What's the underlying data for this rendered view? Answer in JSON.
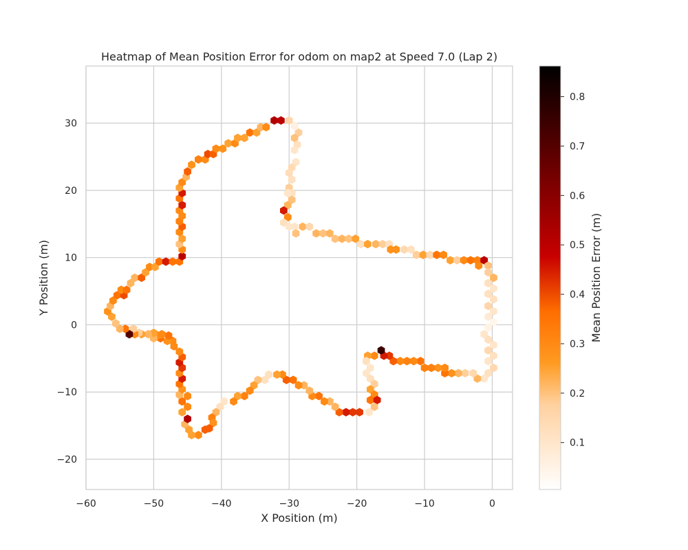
{
  "chart_data": {
    "type": "hexbin",
    "title": "Heatmap of Mean Position Error for odom on map2 at Speed 7.0 (Lap 2)",
    "xlabel": "X Position (m)",
    "ylabel": "Y Position (m)",
    "xlim": [
      -60,
      3
    ],
    "ylim": [
      -24.5,
      38.5
    ],
    "xticks": [
      -60,
      -50,
      -40,
      -30,
      -20,
      -10,
      0
    ],
    "yticks": [
      -20,
      -10,
      0,
      10,
      20,
      30
    ],
    "xtick_labels": [
      "−60",
      "−50",
      "−40",
      "−30",
      "−20",
      "−10",
      "0"
    ],
    "ytick_labels": [
      "−20",
      "−10",
      "0",
      "10",
      "20",
      "30"
    ],
    "grid": true,
    "colormap": "gist_heat_r",
    "colorbar": {
      "label": "Mean Position Error (m)",
      "range": [
        0.005,
        0.862
      ],
      "ticks": [
        0.1,
        0.2,
        0.3,
        0.4,
        0.5,
        0.6,
        0.7,
        0.8
      ],
      "tick_labels": [
        "0.1",
        "0.2",
        "0.3",
        "0.4",
        "0.5",
        "0.6",
        "0.7",
        "0.8"
      ]
    },
    "points": [
      [
        -32.2,
        30.4,
        0.52
      ],
      [
        -31.2,
        30.4,
        0.5
      ],
      [
        -30.0,
        30.4,
        0.16
      ],
      [
        -29.2,
        29.6,
        0.06
      ],
      [
        -28.6,
        28.6,
        0.18
      ],
      [
        -29.2,
        27.8,
        0.2
      ],
      [
        -28.8,
        26.8,
        0.12
      ],
      [
        -29.2,
        26.0,
        0.1
      ],
      [
        -29.0,
        24.2,
        0.1
      ],
      [
        -29.6,
        23.4,
        0.14
      ],
      [
        -30.0,
        22.6,
        0.13
      ],
      [
        -29.6,
        21.6,
        0.12
      ],
      [
        -30.0,
        20.4,
        0.18
      ],
      [
        -29.6,
        19.6,
        0.12
      ],
      [
        -30.2,
        19.6,
        0.1
      ],
      [
        -29.6,
        18.6,
        0.2
      ],
      [
        -30.2,
        17.8,
        0.22
      ],
      [
        -30.8,
        17.0,
        0.45
      ],
      [
        -30.2,
        16.0,
        0.3
      ],
      [
        -30.8,
        15.2,
        0.12
      ],
      [
        -30.0,
        14.6,
        0.1
      ],
      [
        -29.2,
        14.6,
        0.1
      ],
      [
        -29.0,
        13.6,
        0.2
      ],
      [
        -28.0,
        14.6,
        0.22
      ],
      [
        -27.0,
        14.6,
        0.15
      ],
      [
        -26.0,
        13.6,
        0.22
      ],
      [
        -25.0,
        13.6,
        0.2
      ],
      [
        -24.0,
        13.6,
        0.22
      ],
      [
        -23.2,
        12.8,
        0.2
      ],
      [
        -22.2,
        12.8,
        0.22
      ],
      [
        -21.2,
        12.8,
        0.2
      ],
      [
        -20.2,
        12.8,
        0.25
      ],
      [
        -19.4,
        12.0,
        0.12
      ],
      [
        -18.4,
        12.0,
        0.25
      ],
      [
        -17.2,
        12.0,
        0.22
      ],
      [
        -16.2,
        12.0,
        0.18
      ],
      [
        -15.2,
        12.0,
        0.12
      ],
      [
        -15.0,
        11.2,
        0.28
      ],
      [
        -14.2,
        11.2,
        0.28
      ],
      [
        -13.0,
        11.2,
        0.15
      ],
      [
        -12.0,
        11.2,
        0.12
      ],
      [
        -11.2,
        10.4,
        0.18
      ],
      [
        -10.2,
        10.4,
        0.25
      ],
      [
        -9.2,
        10.4,
        0.15
      ],
      [
        -8.2,
        10.4,
        0.35
      ],
      [
        -7.2,
        10.4,
        0.3
      ],
      [
        -6.2,
        9.6,
        0.25
      ],
      [
        -5.2,
        9.6,
        0.18
      ],
      [
        -4.2,
        9.6,
        0.3
      ],
      [
        -3.2,
        9.6,
        0.35
      ],
      [
        -2.2,
        9.6,
        0.32
      ],
      [
        -1.2,
        9.6,
        0.5
      ],
      [
        -2.0,
        8.8,
        0.3
      ],
      [
        -0.6,
        8.8,
        0.2
      ],
      [
        -0.6,
        7.8,
        0.18
      ],
      [
        0.2,
        7.0,
        0.22
      ],
      [
        -0.6,
        6.2,
        0.12
      ],
      [
        0.2,
        5.4,
        0.1
      ],
      [
        -0.6,
        4.6,
        0.12
      ],
      [
        0.2,
        3.8,
        0.12
      ],
      [
        -0.6,
        2.8,
        0.16
      ],
      [
        0.2,
        2.0,
        0.1
      ],
      [
        -0.6,
        1.2,
        0.08
      ],
      [
        0.2,
        0.4,
        0.04
      ],
      [
        -0.6,
        -0.4,
        0.05
      ],
      [
        -1.2,
        -1.4,
        0.1
      ],
      [
        -0.6,
        -2.2,
        0.12
      ],
      [
        0.2,
        -3.0,
        0.1
      ],
      [
        -0.6,
        -3.8,
        0.15
      ],
      [
        0.2,
        -4.6,
        0.12
      ],
      [
        -0.6,
        -5.4,
        0.1
      ],
      [
        0.2,
        -6.4,
        0.15
      ],
      [
        -0.6,
        -7.2,
        0.12
      ],
      [
        -1.2,
        -8.0,
        0.1
      ],
      [
        -2.2,
        -8.0,
        0.22
      ],
      [
        -2.8,
        -7.2,
        0.15
      ],
      [
        -4.0,
        -7.2,
        0.18
      ],
      [
        -5.0,
        -7.2,
        0.22
      ],
      [
        -6.0,
        -7.2,
        0.28
      ],
      [
        -7.0,
        -7.2,
        0.35
      ],
      [
        -7.0,
        -6.4,
        0.3
      ],
      [
        -8.0,
        -6.4,
        0.28
      ],
      [
        -9.0,
        -6.4,
        0.32
      ],
      [
        -10.0,
        -6.4,
        0.32
      ],
      [
        -10.6,
        -5.4,
        0.35
      ],
      [
        -11.6,
        -5.4,
        0.3
      ],
      [
        -12.6,
        -5.4,
        0.32
      ],
      [
        -13.6,
        -5.4,
        0.3
      ],
      [
        -14.6,
        -5.4,
        0.38
      ],
      [
        -15.2,
        -4.6,
        0.42
      ],
      [
        -16.0,
        -4.6,
        0.45
      ],
      [
        -16.4,
        -3.8,
        0.75
      ],
      [
        -17.4,
        -4.6,
        0.3
      ],
      [
        -18.4,
        -4.6,
        0.25
      ],
      [
        -18.6,
        -5.4,
        0.12
      ],
      [
        -18.0,
        -6.4,
        0.1
      ],
      [
        -18.6,
        -7.2,
        0.1
      ],
      [
        -18.0,
        -8.0,
        0.12
      ],
      [
        -17.4,
        -8.8,
        0.18
      ],
      [
        -18.0,
        -9.6,
        0.25
      ],
      [
        -17.4,
        -10.4,
        0.3
      ],
      [
        -18.0,
        -11.2,
        0.35
      ],
      [
        -17.0,
        -11.2,
        0.45
      ],
      [
        -17.4,
        -12.2,
        0.2
      ],
      [
        -18.2,
        -13.0,
        0.1
      ],
      [
        -19.6,
        -13.0,
        0.42
      ],
      [
        -20.6,
        -13.0,
        0.42
      ],
      [
        -21.6,
        -13.0,
        0.45
      ],
      [
        -22.6,
        -13.0,
        0.38
      ],
      [
        -23.2,
        -12.2,
        0.22
      ],
      [
        -24.0,
        -11.4,
        0.22
      ],
      [
        -24.8,
        -11.4,
        0.3
      ],
      [
        -25.6,
        -10.6,
        0.35
      ],
      [
        -26.6,
        -10.6,
        0.3
      ],
      [
        -27.0,
        -9.8,
        0.22
      ],
      [
        -27.8,
        -9.0,
        0.22
      ],
      [
        -28.6,
        -9.0,
        0.3
      ],
      [
        -29.4,
        -8.2,
        0.35
      ],
      [
        -30.4,
        -8.2,
        0.38
      ],
      [
        -31.0,
        -7.4,
        0.3
      ],
      [
        -31.8,
        -7.4,
        0.25
      ],
      [
        -33.0,
        -7.4,
        0.12
      ],
      [
        -33.6,
        -8.2,
        0.12
      ],
      [
        -34.6,
        -8.2,
        0.2
      ],
      [
        -35.2,
        -9.0,
        0.25
      ],
      [
        -35.8,
        -9.8,
        0.3
      ],
      [
        -36.6,
        -10.6,
        0.32
      ],
      [
        -37.6,
        -10.6,
        0.25
      ],
      [
        -38.2,
        -11.4,
        0.3
      ],
      [
        -39.6,
        -11.4,
        0.1
      ],
      [
        -40.2,
        -12.2,
        0.12
      ],
      [
        -40.8,
        -13.0,
        0.22
      ],
      [
        -41.4,
        -13.8,
        0.32
      ],
      [
        -41.2,
        -14.6,
        0.28
      ],
      [
        -41.8,
        -15.4,
        0.38
      ],
      [
        -42.4,
        -15.6,
        0.38
      ],
      [
        -43.4,
        -16.4,
        0.3
      ],
      [
        -44.4,
        -16.4,
        0.25
      ],
      [
        -44.8,
        -15.6,
        0.25
      ],
      [
        -45.4,
        -14.8,
        0.22
      ],
      [
        -45.0,
        -14.0,
        0.52
      ],
      [
        -45.8,
        -13.0,
        0.25
      ],
      [
        -45.0,
        -12.2,
        0.3
      ],
      [
        -45.8,
        -11.4,
        0.35
      ],
      [
        -45.0,
        -10.6,
        0.3
      ],
      [
        -46.2,
        -10.4,
        0.22
      ],
      [
        -45.8,
        -9.6,
        0.28
      ],
      [
        -46.2,
        -8.8,
        0.35
      ],
      [
        -45.8,
        -8.0,
        0.45
      ],
      [
        -46.2,
        -7.2,
        0.3
      ],
      [
        -45.8,
        -6.4,
        0.42
      ],
      [
        -46.2,
        -5.6,
        0.45
      ],
      [
        -45.8,
        -4.8,
        0.38
      ],
      [
        -46.2,
        -4.0,
        0.3
      ],
      [
        -47.0,
        -3.2,
        0.3
      ],
      [
        -47.2,
        -2.4,
        0.3
      ],
      [
        -48.0,
        -2.4,
        0.28
      ],
      [
        -47.8,
        -1.6,
        0.35
      ],
      [
        -49.0,
        -2.0,
        0.35
      ],
      [
        -48.8,
        -1.4,
        0.3
      ],
      [
        -49.4,
        -1.6,
        0.3
      ],
      [
        -50.0,
        -2.0,
        0.22
      ],
      [
        -50.0,
        -1.2,
        0.25
      ],
      [
        -50.8,
        -1.4,
        0.22
      ],
      [
        -51.8,
        -1.4,
        0.25
      ],
      [
        -52.2,
        -1.2,
        0.18
      ],
      [
        -52.8,
        -1.4,
        0.3
      ],
      [
        -53.0,
        -0.6,
        0.18
      ],
      [
        -53.6,
        -1.4,
        0.7
      ],
      [
        -54.2,
        -0.6,
        0.35
      ],
      [
        -55.0,
        -0.6,
        0.22
      ],
      [
        -55.6,
        0.2,
        0.2
      ],
      [
        -56.2,
        1.2,
        0.25
      ],
      [
        -56.8,
        2.0,
        0.28
      ],
      [
        -56.4,
        2.8,
        0.22
      ],
      [
        -56.0,
        3.6,
        0.3
      ],
      [
        -55.4,
        4.4,
        0.35
      ],
      [
        -54.4,
        4.4,
        0.4
      ],
      [
        -54.8,
        5.2,
        0.3
      ],
      [
        -54.0,
        5.2,
        0.35
      ],
      [
        -53.4,
        6.2,
        0.22
      ],
      [
        -52.8,
        7.0,
        0.22
      ],
      [
        -51.8,
        7.0,
        0.38
      ],
      [
        -51.2,
        7.8,
        0.25
      ],
      [
        -50.6,
        8.6,
        0.3
      ],
      [
        -49.8,
        8.6,
        0.25
      ],
      [
        -49.2,
        9.4,
        0.35
      ],
      [
        -48.2,
        9.4,
        0.45
      ],
      [
        -47.2,
        9.4,
        0.35
      ],
      [
        -46.2,
        9.4,
        0.35
      ],
      [
        -45.8,
        10.2,
        0.5
      ],
      [
        -45.8,
        11.2,
        0.3
      ],
      [
        -46.2,
        12.0,
        0.2
      ],
      [
        -45.8,
        12.8,
        0.25
      ],
      [
        -46.2,
        13.8,
        0.3
      ],
      [
        -45.8,
        14.6,
        0.38
      ],
      [
        -46.2,
        15.4,
        0.32
      ],
      [
        -45.8,
        16.2,
        0.3
      ],
      [
        -46.2,
        17.0,
        0.3
      ],
      [
        -45.8,
        17.8,
        0.45
      ],
      [
        -46.2,
        18.8,
        0.35
      ],
      [
        -45.8,
        19.6,
        0.45
      ],
      [
        -46.2,
        20.4,
        0.25
      ],
      [
        -45.8,
        21.2,
        0.3
      ],
      [
        -45.2,
        22.0,
        0.22
      ],
      [
        -45.0,
        22.8,
        0.38
      ],
      [
        -44.4,
        23.8,
        0.28
      ],
      [
        -43.4,
        24.6,
        0.32
      ],
      [
        -42.4,
        24.6,
        0.3
      ],
      [
        -42.0,
        25.4,
        0.4
      ],
      [
        -41.2,
        25.4,
        0.38
      ],
      [
        -40.8,
        26.2,
        0.3
      ],
      [
        -39.8,
        26.2,
        0.28
      ],
      [
        -39.0,
        27.0,
        0.25
      ],
      [
        -38.0,
        27.0,
        0.3
      ],
      [
        -37.6,
        27.8,
        0.25
      ],
      [
        -36.6,
        27.8,
        0.25
      ],
      [
        -35.8,
        28.6,
        0.35
      ],
      [
        -34.8,
        28.6,
        0.25
      ],
      [
        -34.2,
        29.4,
        0.22
      ],
      [
        -33.4,
        29.4,
        0.3
      ]
    ]
  }
}
